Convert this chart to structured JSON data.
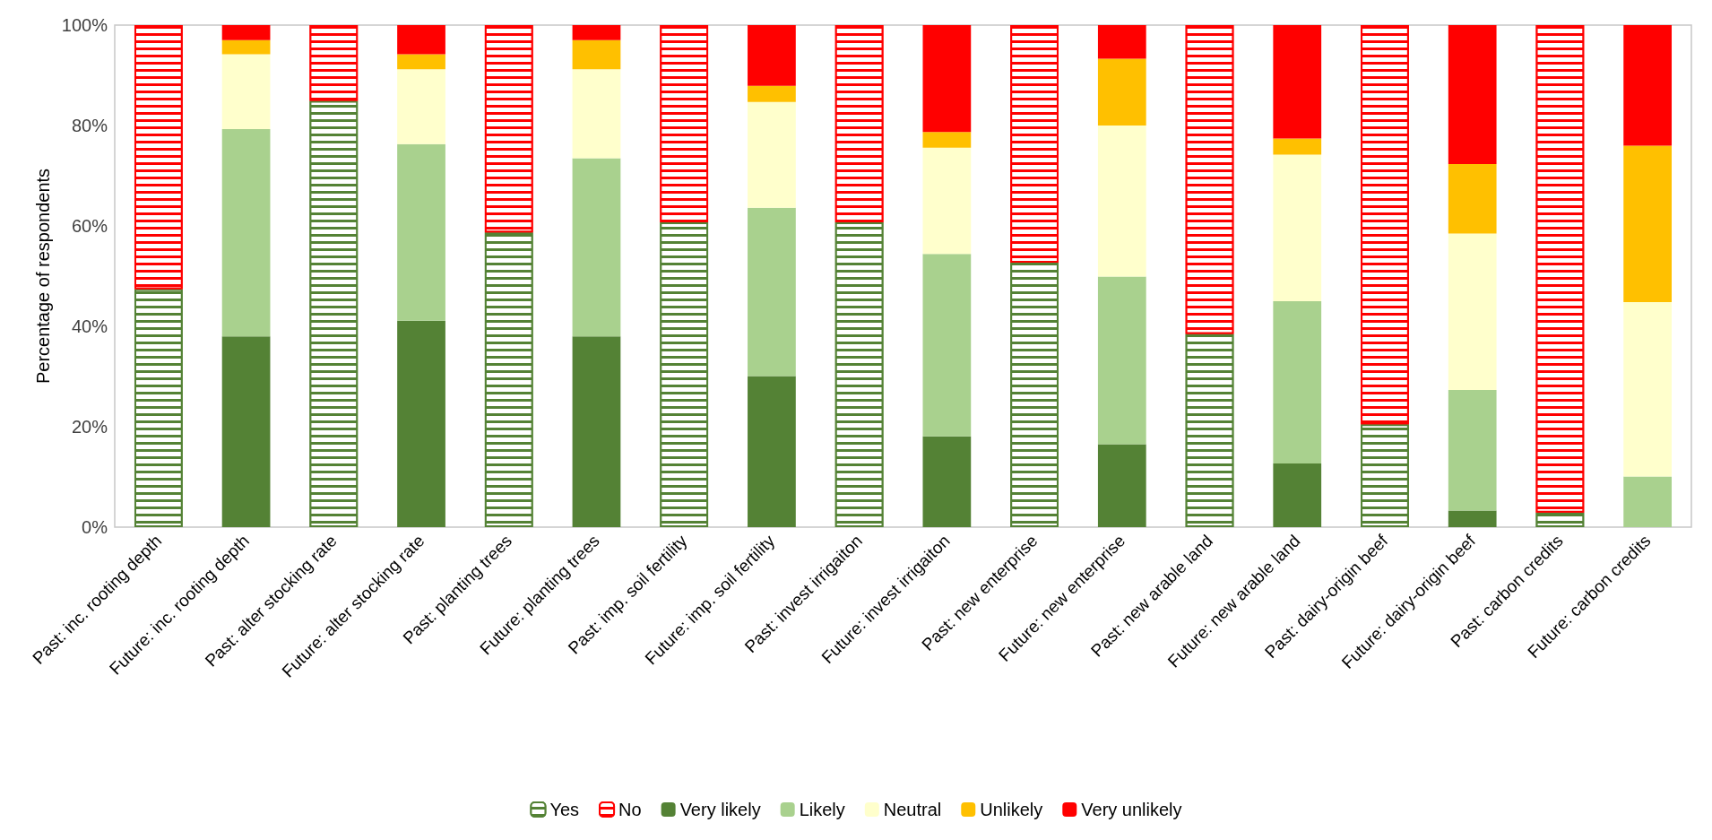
{
  "chart_data": {
    "type": "bar",
    "stacked": true,
    "ylabel": "Percentage of respondents",
    "categories": [
      "Past: inc. rooting depth",
      "Future: inc. rooting depth",
      "Past: alter stocking rate",
      "Future: alter stocking rate",
      "Past: planting trees",
      "Future: planting trees",
      "Past: imp. soil fertility",
      "Future: imp. soil fertility",
      "Past: invest irrigaiton",
      "Future: invest irrigaiton",
      "Past: new enterprise",
      "Future: new enterprise",
      "Past: new arable land",
      "Future: new arable land",
      "Past: dairy-origin beef",
      "Future: dairy-origin beef",
      "Past: carbon credits",
      "Future: carbon credits"
    ],
    "series": [
      {
        "name": "Yes",
        "color": "#548235",
        "values": [
          47.4,
          null,
          84.9,
          null,
          58.7,
          null,
          60.7,
          null,
          60.7,
          null,
          52.7,
          null,
          38.5,
          null,
          20.5,
          null,
          2.9,
          null
        ]
      },
      {
        "name": "No",
        "color": "#ff0000",
        "values": [
          52.6,
          null,
          15.1,
          null,
          41.3,
          null,
          39.3,
          null,
          39.3,
          null,
          47.3,
          null,
          61.5,
          null,
          79.5,
          null,
          97.1,
          null
        ]
      },
      {
        "name": "Very likely",
        "color": "#548235",
        "values": [
          null,
          38.0,
          null,
          41.1,
          null,
          38.0,
          null,
          30.1,
          null,
          18.1,
          null,
          16.5,
          null,
          12.7,
          null,
          3.3,
          null,
          0
        ]
      },
      {
        "name": "Likely",
        "color": "#a9d18e",
        "values": [
          null,
          41.3,
          null,
          35.2,
          null,
          35.5,
          null,
          33.5,
          null,
          36.3,
          null,
          33.4,
          null,
          32.3,
          null,
          24.0,
          null,
          10.1
        ]
      },
      {
        "name": "Neutral",
        "color": "#ffffcc",
        "values": [
          null,
          14.9,
          null,
          14.9,
          null,
          17.7,
          null,
          21.1,
          null,
          21.2,
          null,
          30.1,
          null,
          29.2,
          null,
          31.2,
          null,
          34.7
        ]
      },
      {
        "name": "Unlikely",
        "color": "#ffc000",
        "values": [
          null,
          2.8,
          null,
          3.0,
          null,
          5.8,
          null,
          3.2,
          null,
          3.1,
          null,
          13.3,
          null,
          3.2,
          null,
          13.8,
          null,
          31.2
        ]
      },
      {
        "name": "Very unlikely",
        "color": "#ff0000",
        "values": [
          null,
          3.0,
          null,
          5.8,
          null,
          3.0,
          null,
          12.1,
          null,
          21.3,
          null,
          6.7,
          null,
          22.6,
          null,
          27.7,
          null,
          24.0
        ]
      }
    ],
    "ylim": [
      0,
      100
    ],
    "yticks": [
      {
        "value": 0,
        "label": "0%"
      },
      {
        "value": 20,
        "label": "20%"
      },
      {
        "value": 40,
        "label": "40%"
      },
      {
        "value": 60,
        "label": "60%"
      },
      {
        "value": 80,
        "label": "80%"
      },
      {
        "value": 100,
        "label": "100%"
      }
    ],
    "grid": false,
    "legend": "bottom"
  }
}
